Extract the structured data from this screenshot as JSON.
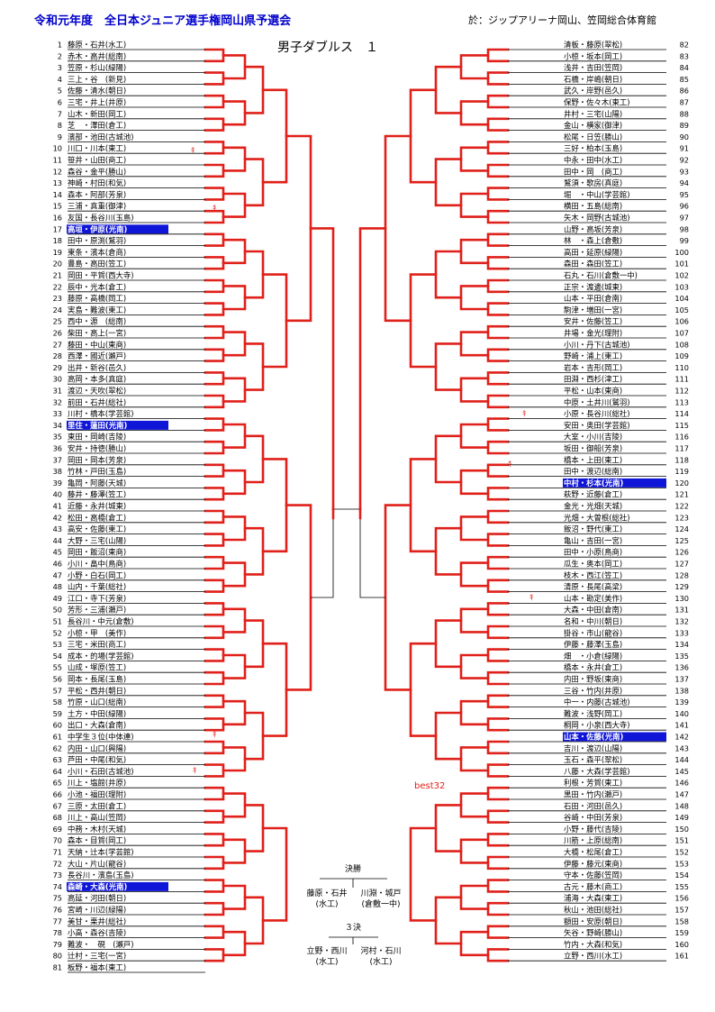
{
  "header": {
    "title": "令和元年度　全日本ジュニア選手権岡山県予選会",
    "venue": "於：ジップアリーナ岡山、笠岡総合体育館",
    "event": "男子ダブルス　１"
  },
  "colors": {
    "advance_line": "#e0201a",
    "highlight_bg": "#1016d8",
    "title": "#0000cc"
  },
  "left_entries": [
    {
      "no": "1",
      "name": "藤原・石井(水工)"
    },
    {
      "no": "2",
      "name": "赤木・高井(総南)"
    },
    {
      "no": "3",
      "name": "笠原・杉山(緑陽)"
    },
    {
      "no": "4",
      "name": "三上・谷　(新見)"
    },
    {
      "no": "5",
      "name": "佐藤・清水(朝日)"
    },
    {
      "no": "6",
      "name": "三宅・井上(井原)"
    },
    {
      "no": "7",
      "name": "山木・新田(岡工)"
    },
    {
      "no": "8",
      "name": "芝　・澤田(倉工)"
    },
    {
      "no": "9",
      "name": "濱部・池田(古城池)"
    },
    {
      "no": "10",
      "name": "川口・川本(東工)"
    },
    {
      "no": "11",
      "name": "笹井・山田(商工)"
    },
    {
      "no": "12",
      "name": "森谷・金平(勝山)"
    },
    {
      "no": "13",
      "name": "神崎・村田(和気)"
    },
    {
      "no": "14",
      "name": "森本・阿部(芳泉)"
    },
    {
      "no": "15",
      "name": "三浦・真重(御津)"
    },
    {
      "no": "16",
      "name": "友国・長谷川(玉島)"
    },
    {
      "no": "17",
      "name": "高垣・伊原(光南)",
      "hl": true
    },
    {
      "no": "18",
      "name": "田中・原渕(鷲羽)"
    },
    {
      "no": "19",
      "name": "東条・濱本(倉商)"
    },
    {
      "no": "20",
      "name": "豊島・高田(笠工)"
    },
    {
      "no": "21",
      "name": "岡田・平賀(西大寺)"
    },
    {
      "no": "22",
      "name": "辰中・光本(倉工)"
    },
    {
      "no": "23",
      "name": "藤原・高橋(岡工)"
    },
    {
      "no": "24",
      "name": "実島・難波(東工)"
    },
    {
      "no": "25",
      "name": "西中・源　(総南)"
    },
    {
      "no": "26",
      "name": "柴田・高上(一宮)"
    },
    {
      "no": "27",
      "name": "藤田・中山(東商)"
    },
    {
      "no": "28",
      "name": "西澤・國近(瀬戸)"
    },
    {
      "no": "29",
      "name": "出井・新谷(邑久)"
    },
    {
      "no": "30",
      "name": "高岡・本多(真庭)"
    },
    {
      "no": "31",
      "name": "渡辺・天吹(翠松)"
    },
    {
      "no": "32",
      "name": "前田・石井(総社)"
    },
    {
      "no": "33",
      "name": "川村・橋本(学芸館)"
    },
    {
      "no": "34",
      "name": "里住・蓮田(光南)",
      "hl": true
    },
    {
      "no": "35",
      "name": "東田・岡崎(吉陵)"
    },
    {
      "no": "36",
      "name": "安井・持徳(勝山)"
    },
    {
      "no": "37",
      "name": "岡田・岡本(芳泉)"
    },
    {
      "no": "38",
      "name": "竹林・戸田(玉島)"
    },
    {
      "no": "39",
      "name": "亀岡・阿藤(天城)"
    },
    {
      "no": "40",
      "name": "藤井・藤澤(笠工)"
    },
    {
      "no": "41",
      "name": "近藤・永井(城東)"
    },
    {
      "no": "42",
      "name": "松田・高橋(倉工)"
    },
    {
      "no": "43",
      "name": "高安・佐藤(東工)"
    },
    {
      "no": "44",
      "name": "大野・三宅(山陽)"
    },
    {
      "no": "45",
      "name": "岡田・飯沼(東商)"
    },
    {
      "no": "46",
      "name": "小川・畠中(鳥商)"
    },
    {
      "no": "47",
      "name": "小野・白石(岡工)"
    },
    {
      "no": "48",
      "name": "山内・千葉(総社)"
    },
    {
      "no": "49",
      "name": "江口・寺下(芳泉)"
    },
    {
      "no": "50",
      "name": "芳形・三浦(瀬戸)"
    },
    {
      "no": "51",
      "name": "長谷川・中元(倉敷)"
    },
    {
      "no": "52",
      "name": "小椋・甲　(美作)"
    },
    {
      "no": "53",
      "name": "三宅・米田(商工)"
    },
    {
      "no": "54",
      "name": "成本・的場(学芸館)"
    },
    {
      "no": "55",
      "name": "山成・塚原(笠工)"
    },
    {
      "no": "56",
      "name": "岡本・長尾(玉島)"
    },
    {
      "no": "57",
      "name": "平松・西井(朝日)"
    },
    {
      "no": "58",
      "name": "竹原・山口(総南)"
    },
    {
      "no": "59",
      "name": "土方・中田(緑陽)"
    },
    {
      "no": "60",
      "name": "出口・大森(倉南)"
    },
    {
      "no": "61",
      "name": "中学生３位(中体連)"
    },
    {
      "no": "62",
      "name": "内田・山口(興陽)"
    },
    {
      "no": "63",
      "name": "芦田・中尾(和気)"
    },
    {
      "no": "64",
      "name": "小川・石田(古城池)"
    },
    {
      "no": "65",
      "name": "川上・塩館(井原)"
    },
    {
      "no": "66",
      "name": "小池・福田(理附)"
    },
    {
      "no": "67",
      "name": "三原・太田(倉工)"
    },
    {
      "no": "68",
      "name": "川上・高山(笠岡)"
    },
    {
      "no": "69",
      "name": "中務・木村(天城)"
    },
    {
      "no": "70",
      "name": "森本・目賀(岡工)"
    },
    {
      "no": "71",
      "name": "天納・辻本(学芸館)"
    },
    {
      "no": "72",
      "name": "大山・片山(龍谷)"
    },
    {
      "no": "73",
      "name": "長谷川・濱島(玉島)"
    },
    {
      "no": "74",
      "name": "森崎・大森(光南)",
      "hl": true
    },
    {
      "no": "75",
      "name": "高延・河田(朝日)"
    },
    {
      "no": "76",
      "name": "宮崎・川辺(緑陽)"
    },
    {
      "no": "77",
      "name": "美甘・栗井(総社)"
    },
    {
      "no": "78",
      "name": "小高・森谷(吉陵)"
    },
    {
      "no": "79",
      "name": "難波・　硯　(瀬戸)"
    },
    {
      "no": "80",
      "name": "辻村・三宅(一宮)"
    },
    {
      "no": "81",
      "name": "板野・福本(東工)"
    }
  ],
  "right_entries": [
    {
      "no": "82",
      "name": "清板・藤原(翠松)"
    },
    {
      "no": "83",
      "name": "小椋・坂本(岡工)"
    },
    {
      "no": "84",
      "name": "浅井・吉田(笠岡)"
    },
    {
      "no": "85",
      "name": "石橋・岸嶋(朝日)"
    },
    {
      "no": "86",
      "name": "武久・岸野(邑久)"
    },
    {
      "no": "87",
      "name": "保野・佐々木(東工)"
    },
    {
      "no": "88",
      "name": "井村・三宅(山陽)"
    },
    {
      "no": "89",
      "name": "金山・横家(御津)"
    },
    {
      "no": "90",
      "name": "松尾・日笠(勝山)"
    },
    {
      "no": "91",
      "name": "三好・柏本(玉島)"
    },
    {
      "no": "92",
      "name": "中永・田中(水工)"
    },
    {
      "no": "93",
      "name": "田中・岡　(商工)"
    },
    {
      "no": "94",
      "name": "鷲須・歌房(真庭)"
    },
    {
      "no": "95",
      "name": "堀　・中山(学芸館)"
    },
    {
      "no": "96",
      "name": "横田・五島(総南)"
    },
    {
      "no": "97",
      "name": "矢木・岡野(古城池)"
    },
    {
      "no": "98",
      "name": "山野・高坂(芳泉)"
    },
    {
      "no": "99",
      "name": "林　・森上(倉敷)"
    },
    {
      "no": "100",
      "name": "高田・延原(緑陽)"
    },
    {
      "no": "101",
      "name": "森田・森田(笠工)"
    },
    {
      "no": "102",
      "name": "石丸・石川(倉敷一中)"
    },
    {
      "no": "103",
      "name": "正宗・渡邊(城東)"
    },
    {
      "no": "104",
      "name": "山本・平田(倉南)"
    },
    {
      "no": "105",
      "name": "駒津・増田(一宮)"
    },
    {
      "no": "106",
      "name": "安井・佐藤(笠工)"
    },
    {
      "no": "107",
      "name": "井場・金光(理附)"
    },
    {
      "no": "108",
      "name": "小川・丹下(古城池)"
    },
    {
      "no": "109",
      "name": "野崎・浦上(東工)"
    },
    {
      "no": "110",
      "name": "岩本・吉形(岡工)"
    },
    {
      "no": "111",
      "name": "田淵・西杉(津工)"
    },
    {
      "no": "112",
      "name": "平松・山本(東商)"
    },
    {
      "no": "113",
      "name": "中原・土井川(鷲羽)"
    },
    {
      "no": "114",
      "name": "小原・長谷川(総社)"
    },
    {
      "no": "115",
      "name": "安田・奥田(学芸館)"
    },
    {
      "no": "116",
      "name": "大室・小川(吉陵)"
    },
    {
      "no": "117",
      "name": "坂田・御船(芳泉)"
    },
    {
      "no": "118",
      "name": "橋本・上田(東工)"
    },
    {
      "no": "119",
      "name": "田中・渡辺(総南)"
    },
    {
      "no": "120",
      "name": "中村・杉本(光南)",
      "hl": true
    },
    {
      "no": "121",
      "name": "萩野・近藤(倉工)"
    },
    {
      "no": "122",
      "name": "金光・光畑(天城)"
    },
    {
      "no": "123",
      "name": "光畑・大曽根(総社)"
    },
    {
      "no": "124",
      "name": "飯沼・野代(東工)"
    },
    {
      "no": "125",
      "name": "亀山・吉田(一宮)"
    },
    {
      "no": "126",
      "name": "田中・小原(鳥商)"
    },
    {
      "no": "127",
      "name": "瓜生・奥本(岡工)"
    },
    {
      "no": "128",
      "name": "枝木・西江(笠工)"
    },
    {
      "no": "129",
      "name": "清原・長尾(高梁)"
    },
    {
      "no": "130",
      "name": "山本・勘定(美作)"
    },
    {
      "no": "131",
      "name": "大森・中田(倉南)"
    },
    {
      "no": "132",
      "name": "名和・中川(朝日)"
    },
    {
      "no": "133",
      "name": "掛谷・市山(龍谷)"
    },
    {
      "no": "134",
      "name": "伊藤・藤澤(玉島)"
    },
    {
      "no": "135",
      "name": "畑　・小倉(緑陽)"
    },
    {
      "no": "136",
      "name": "橋本・永井(倉工)"
    },
    {
      "no": "137",
      "name": "内田・野坂(東商)"
    },
    {
      "no": "138",
      "name": "三谷・竹内(井原)"
    },
    {
      "no": "139",
      "name": "中一・内藤(古城池)"
    },
    {
      "no": "140",
      "name": "難波・浅野(岡工)"
    },
    {
      "no": "141",
      "name": "桐岡・小泉(西大寺)"
    },
    {
      "no": "142",
      "name": "山本・佐藤(光南)",
      "hl": true
    },
    {
      "no": "143",
      "name": "吉川・渡辺(山陽)"
    },
    {
      "no": "144",
      "name": "玉石・森平(翠松)"
    },
    {
      "no": "145",
      "name": "八藤・大森(学芸館)"
    },
    {
      "no": "146",
      "name": "利根・芳賀(東工)"
    },
    {
      "no": "147",
      "name": "黒田・竹内(瀬戸)"
    },
    {
      "no": "148",
      "name": "石田・河田(邑久)"
    },
    {
      "no": "149",
      "name": "谷崎・中田(芳泉)"
    },
    {
      "no": "150",
      "name": "小野・藤代(吉陵)"
    },
    {
      "no": "151",
      "name": "川筋・上原(総南)"
    },
    {
      "no": "152",
      "name": "大橋・松尾(倉工)"
    },
    {
      "no": "153",
      "name": "伊藤・藤元(東商)"
    },
    {
      "no": "154",
      "name": "守本・佐藤(笠岡)"
    },
    {
      "no": "155",
      "name": "古元・藤木(商工)"
    },
    {
      "no": "156",
      "name": "浦海・大森(東工)"
    },
    {
      "no": "157",
      "name": "秋山・池田(総社)"
    },
    {
      "no": "158",
      "name": "額田・安原(朝日)"
    },
    {
      "no": "159",
      "name": "矢谷・野崎(勝山)"
    },
    {
      "no": "160",
      "name": "竹内・大森(和気)"
    },
    {
      "no": "161",
      "name": "立野・西川(水工)"
    }
  ],
  "annotations": {
    "forfeit_mark": "ｷ",
    "best32": "best32"
  },
  "final": {
    "label": "決勝",
    "winner_name": "藤原・石井",
    "winner_school": "(水工)",
    "loser_name": "川淵・城戸",
    "loser_school": "(倉敷一中)"
  },
  "third": {
    "label": "３決",
    "a_name": "立野・西川",
    "a_school": "(水工)",
    "b_name": "河村・石川",
    "b_school": "(水工)"
  }
}
